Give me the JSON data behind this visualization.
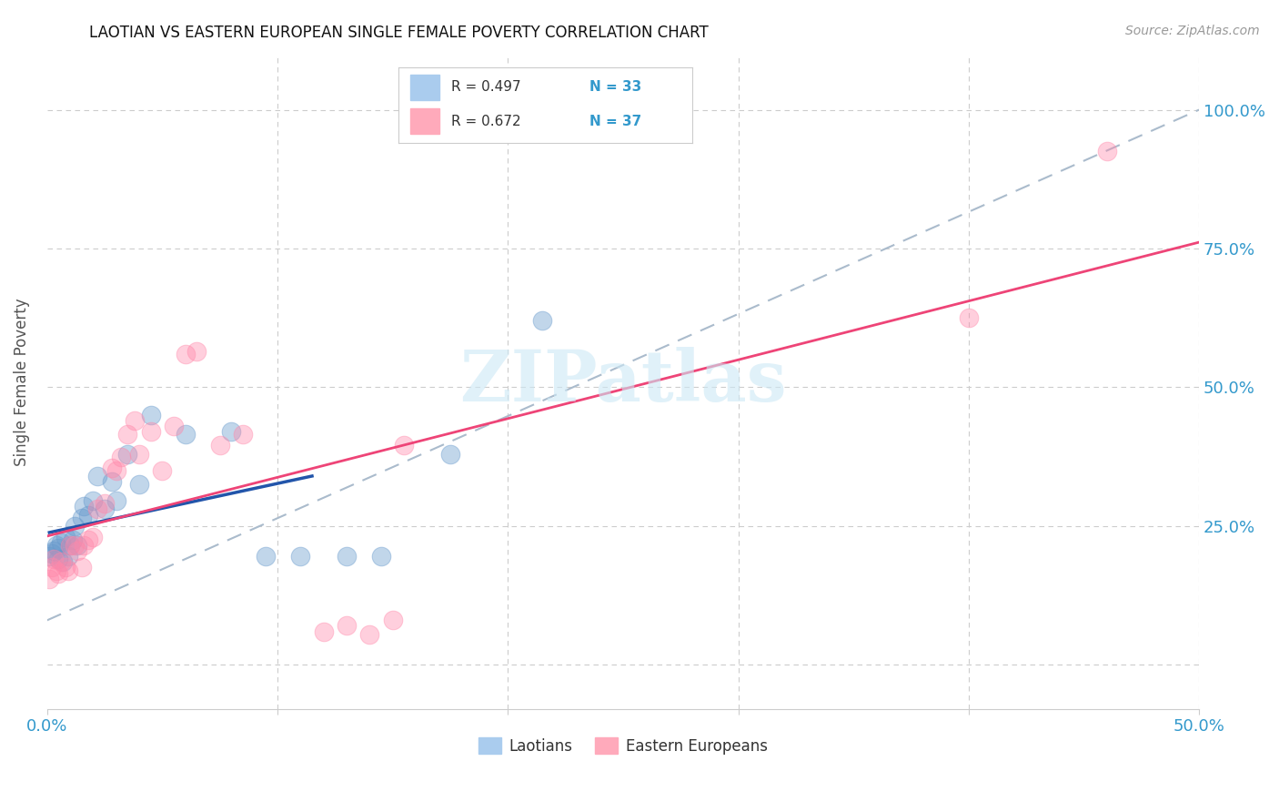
{
  "title": "LAOTIAN VS EASTERN EUROPEAN SINGLE FEMALE POVERTY CORRELATION CHART",
  "source": "Source: ZipAtlas.com",
  "ylabel_label": "Single Female Poverty",
  "xlim": [
    0.0,
    0.5
  ],
  "ylim": [
    -0.08,
    1.1
  ],
  "watermark": "ZIPatlas",
  "color_laotian": "#6699cc",
  "color_eastern": "#ff88aa",
  "background_color": "#ffffff",
  "grid_color": "#cccccc",
  "laotian_x": [
    0.001,
    0.002,
    0.003,
    0.004,
    0.005,
    0.005,
    0.006,
    0.007,
    0.008,
    0.009,
    0.01,
    0.011,
    0.012,
    0.013,
    0.015,
    0.016,
    0.018,
    0.02,
    0.022,
    0.025,
    0.028,
    0.03,
    0.035,
    0.04,
    0.045,
    0.06,
    0.08,
    0.095,
    0.11,
    0.13,
    0.145,
    0.175,
    0.215
  ],
  "laotian_y": [
    0.195,
    0.2,
    0.205,
    0.215,
    0.21,
    0.19,
    0.22,
    0.185,
    0.23,
    0.195,
    0.215,
    0.225,
    0.25,
    0.215,
    0.265,
    0.285,
    0.27,
    0.295,
    0.34,
    0.28,
    0.33,
    0.295,
    0.38,
    0.325,
    0.45,
    0.415,
    0.42,
    0.195,
    0.195,
    0.195,
    0.195,
    0.38,
    0.62
  ],
  "eastern_x": [
    0.001,
    0.002,
    0.003,
    0.004,
    0.005,
    0.006,
    0.008,
    0.009,
    0.01,
    0.012,
    0.013,
    0.015,
    0.016,
    0.018,
    0.02,
    0.022,
    0.025,
    0.028,
    0.03,
    0.032,
    0.035,
    0.038,
    0.04,
    0.045,
    0.05,
    0.055,
    0.06,
    0.065,
    0.075,
    0.085,
    0.12,
    0.13,
    0.14,
    0.15,
    0.155,
    0.4,
    0.46
  ],
  "eastern_y": [
    0.155,
    0.175,
    0.19,
    0.17,
    0.165,
    0.185,
    0.175,
    0.17,
    0.215,
    0.215,
    0.205,
    0.175,
    0.215,
    0.225,
    0.23,
    0.28,
    0.29,
    0.355,
    0.35,
    0.375,
    0.415,
    0.44,
    0.38,
    0.42,
    0.35,
    0.43,
    0.56,
    0.565,
    0.395,
    0.415,
    0.06,
    0.07,
    0.055,
    0.08,
    0.395,
    0.625,
    0.925
  ],
  "ref_line_x": [
    0.0,
    0.5
  ],
  "ref_line_y": [
    0.08,
    1.0
  ]
}
